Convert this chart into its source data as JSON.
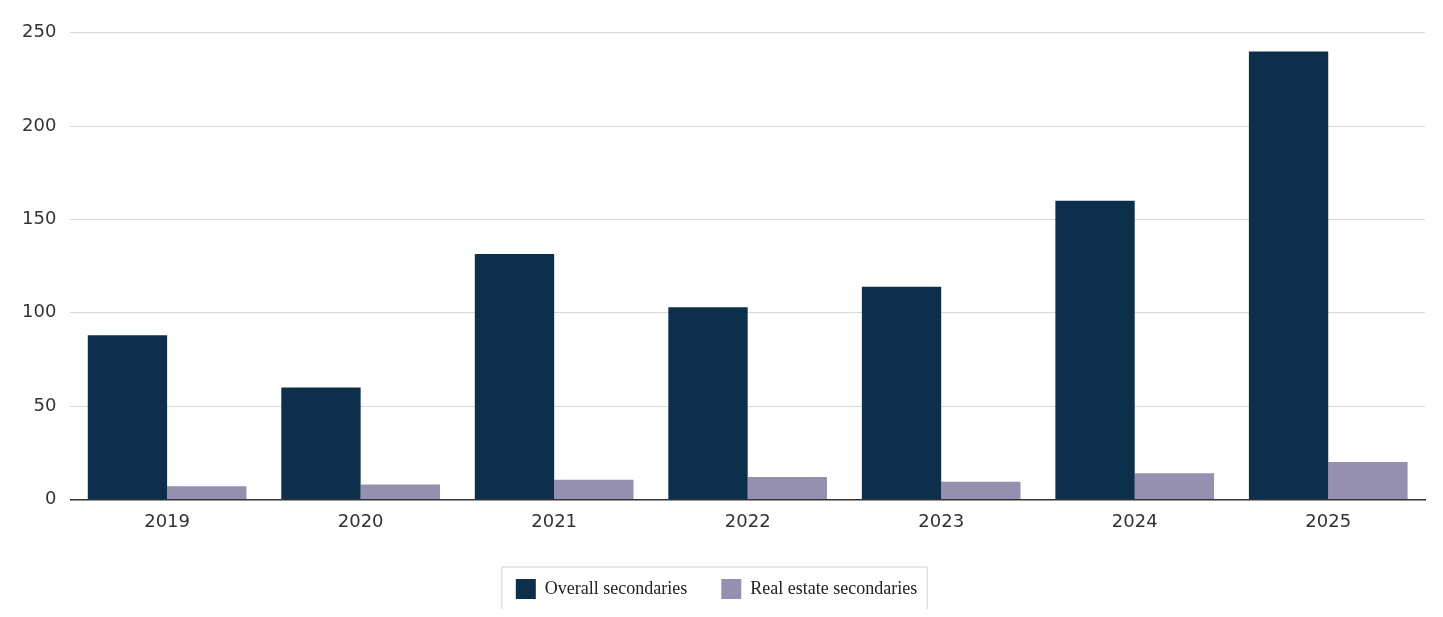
{
  "chart_data": {
    "type": "bar",
    "categories": [
      "2019",
      "2020",
      "2021",
      "2022",
      "2023",
      "2024",
      "2025"
    ],
    "series": [
      {
        "name": "Overall secondaries",
        "color": "#0e2f4c",
        "values": [
          88,
          60,
          131.5,
          103,
          114,
          160,
          240
        ]
      },
      {
        "name": "Real estate secondaries",
        "color": "#9690b0",
        "values": [
          7,
          8,
          10.5,
          12,
          9.5,
          14,
          20
        ]
      }
    ],
    "ylim": [
      0,
      250
    ],
    "yticks": [
      0,
      50,
      100,
      150,
      200,
      250
    ],
    "grid": "y",
    "legend": "bottom"
  }
}
